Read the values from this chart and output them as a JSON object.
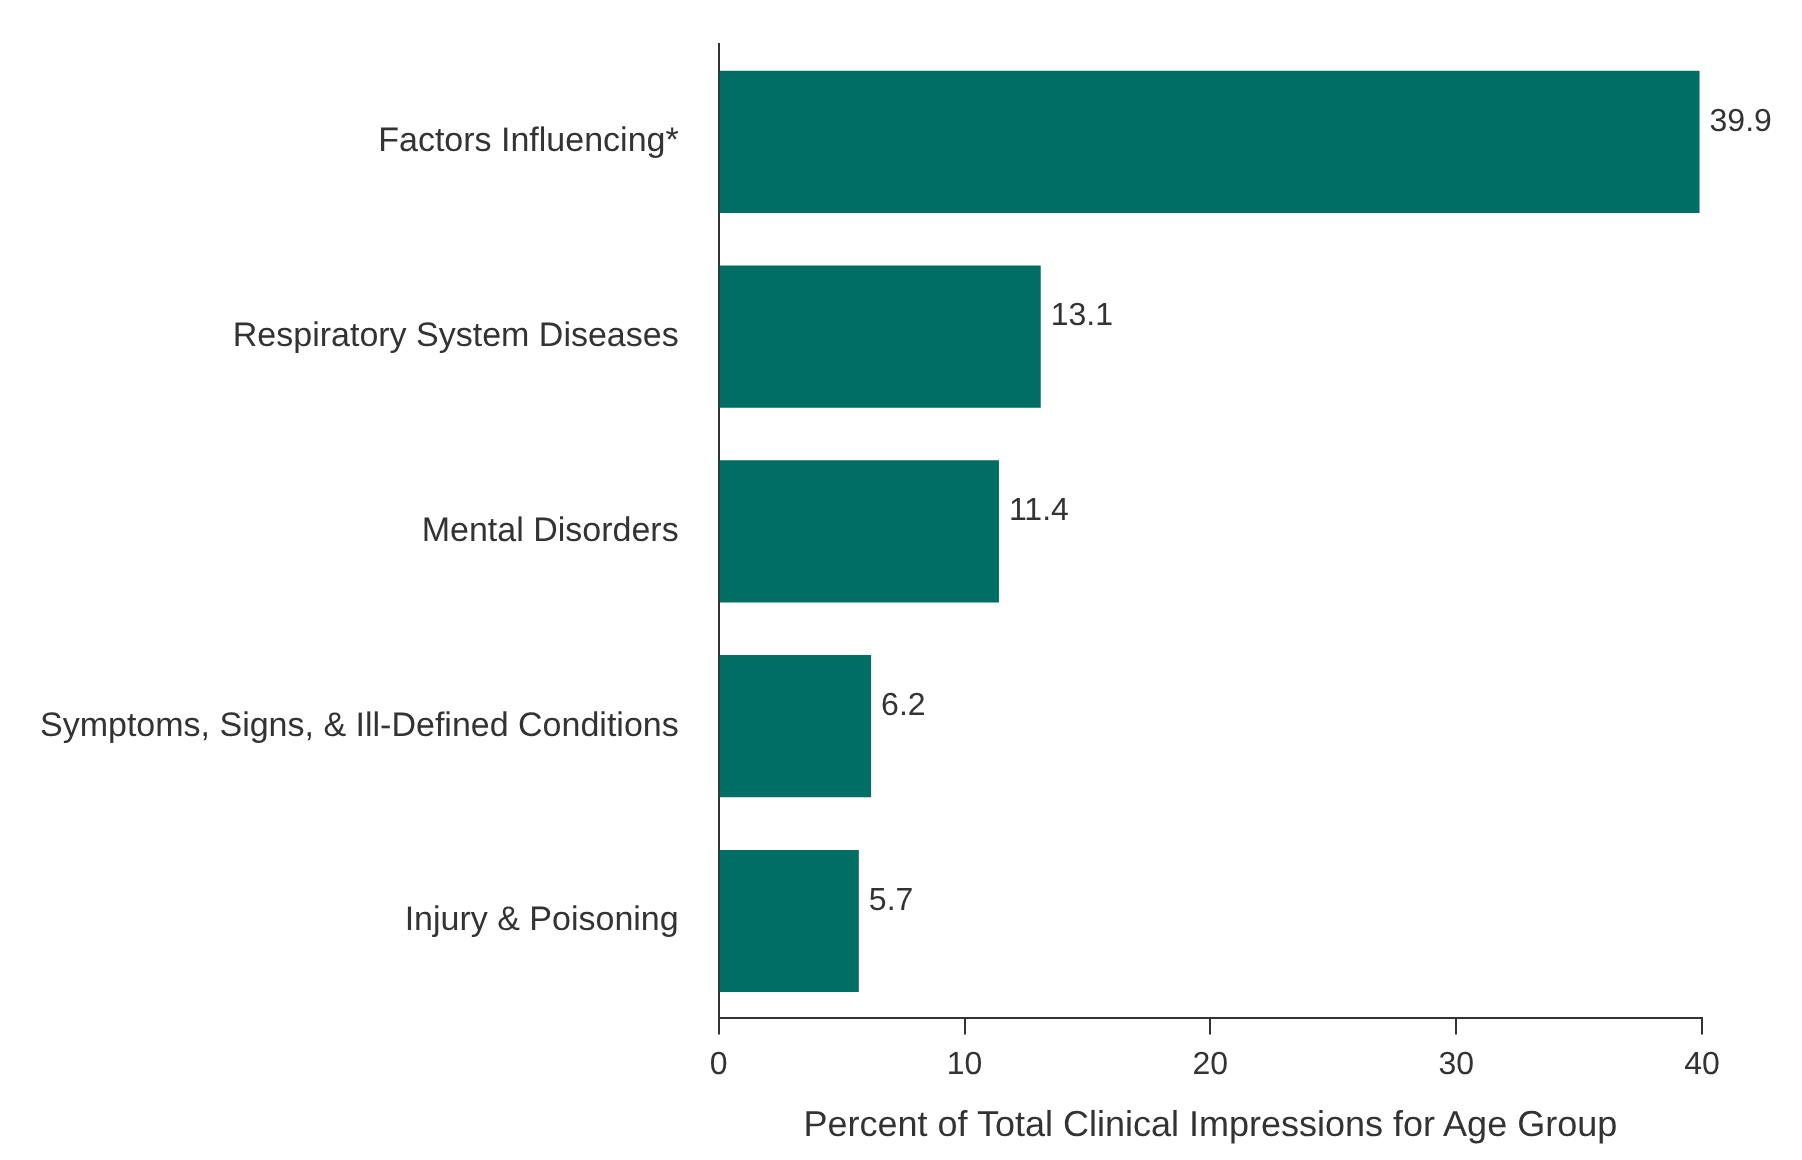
{
  "chart_data": {
    "type": "bar",
    "orientation": "horizontal",
    "xlabel": "Percent of Total Clinical Impressions for Age Group",
    "categories": [
      "Factors Influencing*",
      "Respiratory System Diseases",
      "Mental Disorders",
      "Symptoms, Signs, & Ill-Defined Conditions",
      "Injury & Poisoning"
    ],
    "values": [
      39.9,
      13.1,
      11.4,
      6.2,
      5.7
    ],
    "color": "#006e62",
    "xlim": [
      0,
      40
    ],
    "xticks": [
      0,
      10,
      20,
      30,
      40
    ],
    "grid": false,
    "legend": false,
    "data_labels": true
  }
}
